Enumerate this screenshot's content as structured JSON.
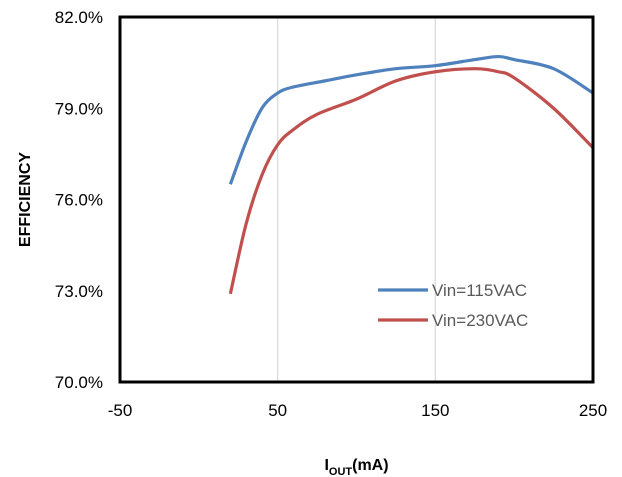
{
  "chart_data": {
    "type": "line",
    "title": "",
    "xlabel": {
      "main": "I",
      "sub": "OUT",
      "suffix": "(mA)"
    },
    "ylabel": "EFFICIENCY",
    "xlim": [
      -50,
      250
    ],
    "ylim": [
      70.0,
      82.0
    ],
    "x_ticks": [
      -50,
      50,
      150,
      250
    ],
    "x_tick_labels": [
      "-50",
      "50",
      "150",
      "250"
    ],
    "y_ticks": [
      70.0,
      73.0,
      76.0,
      79.0,
      82.0
    ],
    "y_tick_labels": [
      "70.0%",
      "73.0%",
      "76.0%",
      "79.0%",
      "82.0%"
    ],
    "grid": {
      "vertical": true,
      "horizontal": false
    },
    "legend_position": "bottom-right",
    "series": [
      {
        "name": "Vin=115VAC",
        "color": "#4f81bd",
        "x": [
          20,
          30,
          40,
          50,
          60,
          80,
          100,
          125,
          150,
          175,
          190,
          200,
          225,
          250
        ],
        "y": [
          76.5,
          77.9,
          79.0,
          79.5,
          79.7,
          79.9,
          80.1,
          80.3,
          80.4,
          80.6,
          80.7,
          80.6,
          80.3,
          79.5
        ]
      },
      {
        "name": "Vin=230VAC",
        "color": "#c0504d",
        "x": [
          20,
          30,
          40,
          50,
          60,
          75,
          100,
          125,
          150,
          175,
          190,
          200,
          225,
          250
        ],
        "y": [
          72.9,
          75.2,
          76.8,
          77.8,
          78.3,
          78.8,
          79.3,
          79.9,
          80.2,
          80.3,
          80.2,
          80.0,
          79.0,
          77.7
        ]
      }
    ]
  }
}
